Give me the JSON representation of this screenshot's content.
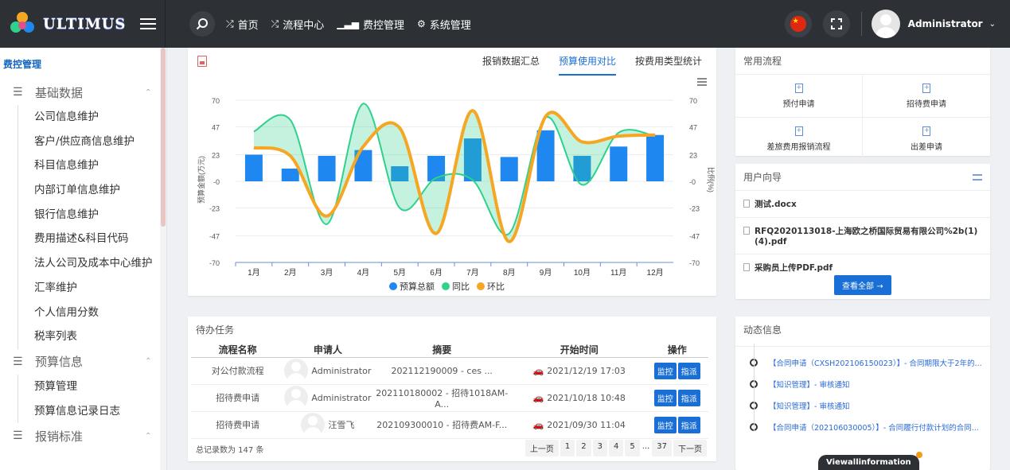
{
  "brand": {
    "logo_text": "ULTIMUS"
  },
  "nav": [
    {
      "icon": "shuffle-icon",
      "label": "首页"
    },
    {
      "icon": "shuffle-icon",
      "label": "流程中心"
    },
    {
      "icon": "bar-signal-icon",
      "label": "费控管理"
    },
    {
      "icon": "gear-icon",
      "label": "系统管理"
    }
  ],
  "user": {
    "name": "Administrator"
  },
  "sidebar": {
    "title": "费控管理",
    "groups": [
      {
        "label": "基础数据",
        "items": [
          "公司信息维护",
          "客户/供应商信息维护",
          "科目信息维护",
          "内部订单信息维护",
          "银行信息维护",
          "费用描述&科目代码",
          "法人公司及成本中心维护",
          "汇率维护",
          "个人信用分数",
          "税率列表"
        ]
      },
      {
        "label": "预算信息",
        "items": [
          "预算管理",
          "预算信息记录日志"
        ]
      },
      {
        "label": "报销标准",
        "items": []
      }
    ]
  },
  "chart_tabs": [
    "报销数据汇总",
    "预算使用对比",
    "按费用类型统计"
  ],
  "chart_tabs_active": 1,
  "chart_data": {
    "type": "bar",
    "categories": [
      "1月",
      "2月",
      "3月",
      "4月",
      "5月",
      "6月",
      "7月",
      "8月",
      "9月",
      "10月",
      "11月",
      "12月"
    ],
    "series": [
      {
        "name": "预算总额",
        "type": "bar",
        "color": "#1e88f0",
        "values": [
          23,
          11,
          22,
          27,
          13,
          22,
          37,
          21,
          44,
          22,
          30,
          40
        ]
      },
      {
        "name": "同比",
        "type": "area",
        "color": "#2fd18c",
        "values": [
          43,
          53,
          -37,
          67,
          -23,
          3,
          1,
          -45,
          55,
          -3,
          42,
          39
        ]
      },
      {
        "name": "环比",
        "type": "line",
        "color": "#f5a623",
        "values": [
          29,
          22,
          -30,
          30,
          46,
          -45,
          61,
          -52,
          56,
          34,
          39,
          40
        ]
      }
    ],
    "ylabel_left": "预算金额(万元)",
    "ylabel_right": "比例(%)",
    "yticks": [
      "70",
      "47",
      "23",
      "-0",
      "-23",
      "-47",
      "-70"
    ],
    "ylim": [
      -70,
      70
    ]
  },
  "tasks": {
    "title": "待办任务",
    "headers": [
      "流程名称",
      "申请人",
      "摘要",
      "开始时间",
      "操作"
    ],
    "rows": [
      {
        "name": "对公付款流程",
        "applicant": "Administrator",
        "summary": "202112190009 - ces ...",
        "time": "2021/12/19 17:03"
      },
      {
        "name": "招待费申请",
        "applicant": "Administrator",
        "summary": "202110180002 - 招待1018AM-A...",
        "time": "2021/10/18 10:48"
      },
      {
        "name": "招待费申请",
        "applicant": "汪雪飞",
        "summary": "202109300010 - 招待费AM-F...",
        "time": "2021/09/30 11:04"
      }
    ],
    "btn_monitor": "监控",
    "btn_assign": "指派",
    "total": "总记录数为 147 条",
    "pager": {
      "prev": "上一页",
      "pages": [
        "1",
        "2",
        "3",
        "4",
        "5"
      ],
      "dots": "...",
      "last": "37",
      "next": "下一页"
    }
  },
  "common_processes": {
    "title": "常用流程",
    "items": [
      "预付申请",
      "招待费申请",
      "差旅费用报销流程",
      "出差申请"
    ]
  },
  "user_guide": {
    "title": "用户向导",
    "files": [
      "测试.docx",
      "RFQ2020113018-上海欧之桥国际贸易有限公司%2b(1)(4).pdf",
      "采购员上传PDF.pdf"
    ],
    "view_all": "查看全部"
  },
  "news": {
    "title": "动态信息",
    "items": [
      "【合同申请（CXSH202106150023）】- 合同期限大于2年的...",
      "【知识管理】- 审核通知",
      "【知识管理】- 审核通知",
      "【合同申请（202106030005）】- 合同履行付款计划的合同..."
    ],
    "view_all": "Viewallinformation"
  }
}
